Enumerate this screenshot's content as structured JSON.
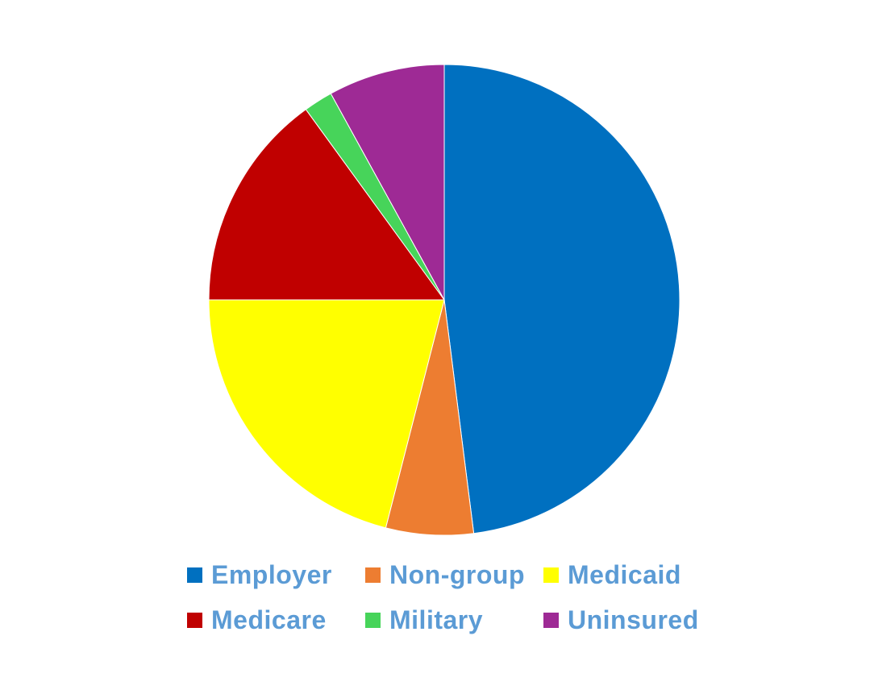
{
  "chart_data": {
    "type": "pie",
    "title": "",
    "categories": [
      "Employer",
      "Non-group",
      "Medicaid",
      "Medicare",
      "Military",
      "Uninsured"
    ],
    "values": [
      48,
      6,
      21,
      15,
      2,
      8
    ],
    "colors": [
      "#0070C0",
      "#ED7D31",
      "#FFFF00",
      "#C00000",
      "#47D45A",
      "#9E2A95"
    ],
    "start_angle_deg": 0,
    "direction": "clockwise",
    "legend_position": "bottom",
    "legend_text_color": "#5B9BD5"
  },
  "legend": {
    "items": [
      {
        "label": "Employer",
        "color": "#0070C0"
      },
      {
        "label": "Non-group",
        "color": "#ED7D31"
      },
      {
        "label": "Medicaid",
        "color": "#FFFF00"
      },
      {
        "label": "Medicare",
        "color": "#C00000"
      },
      {
        "label": "Military",
        "color": "#47D45A"
      },
      {
        "label": "Uninsured",
        "color": "#9E2A95"
      }
    ]
  }
}
